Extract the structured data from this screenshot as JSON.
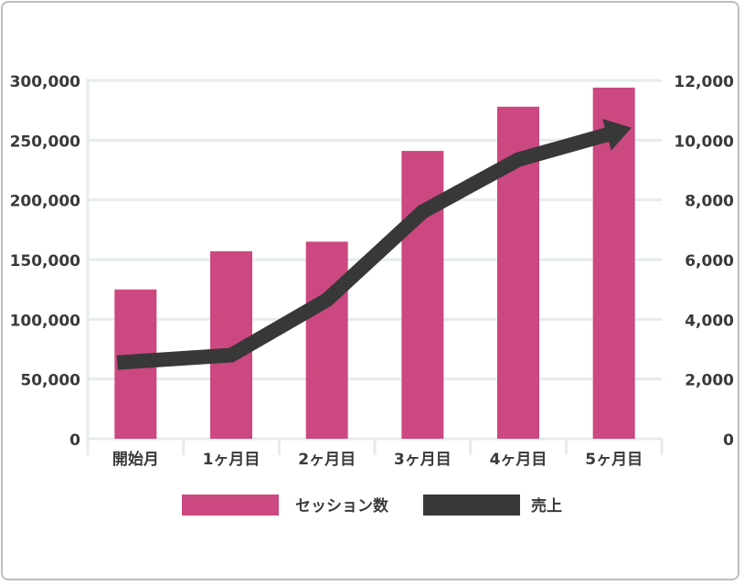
{
  "chart_data": {
    "type": "bar+line",
    "title": "",
    "categories": [
      "開始月",
      "1ヶ月目",
      "2ヶ月目",
      "3ヶ月目",
      "4ヶ月目",
      "5ヶ月目"
    ],
    "series": [
      {
        "name": "セッション数",
        "type": "bar",
        "axis": "left",
        "color": "#cc4881",
        "values": [
          125000,
          157000,
          165000,
          241000,
          278000,
          294000
        ]
      },
      {
        "name": "売上",
        "type": "line",
        "axis": "right",
        "color": "#383838",
        "values": [
          2550,
          2800,
          4650,
          7600,
          9350,
          10250
        ],
        "arrow_end": true
      }
    ],
    "left_axis": {
      "ylim": [
        0,
        300000
      ],
      "ticks": [
        "0",
        "50,000",
        "100,000",
        "150,000",
        "200,000",
        "250,000",
        "300,000"
      ]
    },
    "right_axis": {
      "ylim": [
        0,
        12000
      ],
      "ticks": [
        "0",
        "2,000",
        "4,000",
        "6,000",
        "8,000",
        "10,000",
        "12,000"
      ]
    },
    "grid": true,
    "legend_position": "bottom",
    "xlabel": "",
    "ylabel": ""
  },
  "legend": {
    "items": [
      {
        "label": "セッション数",
        "color": "#cc4881"
      },
      {
        "label": "売上",
        "color": "#383838"
      }
    ]
  },
  "colors": {
    "bar": "#cc4881",
    "line": "#383838",
    "grid": "#e6ecee",
    "text": "#3a3a3a",
    "border": "#bdbdbd"
  }
}
